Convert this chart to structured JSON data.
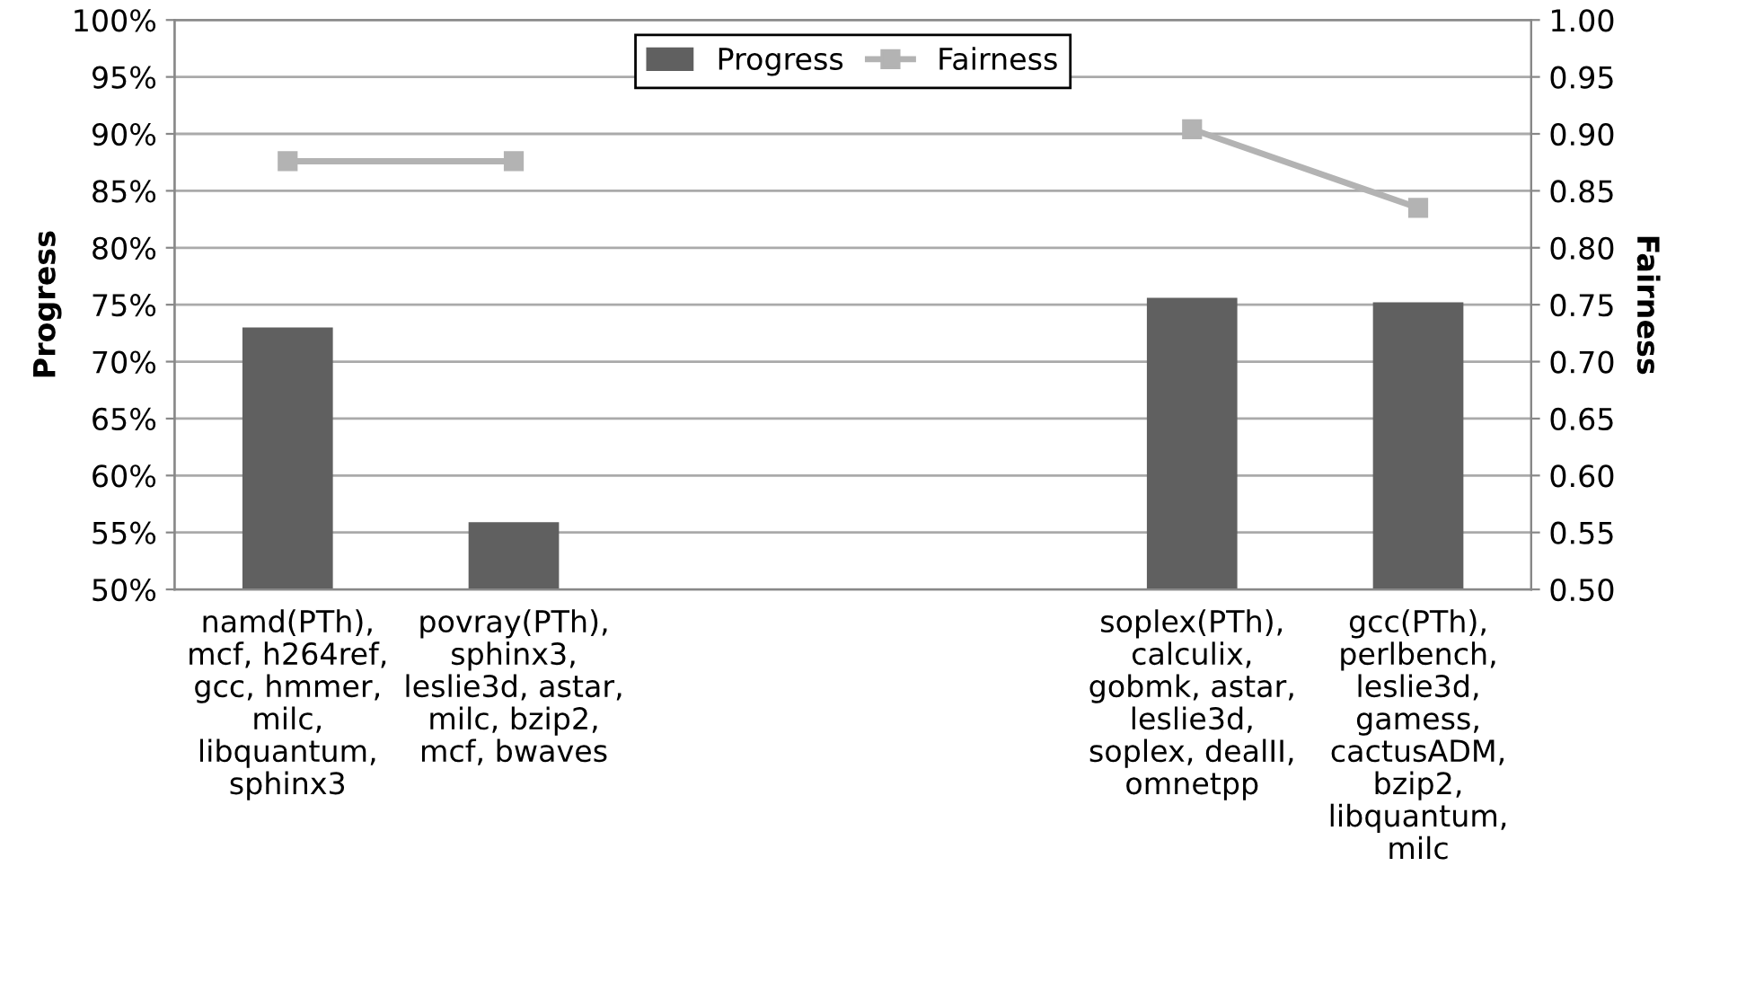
{
  "chart_data": {
    "type": "bar",
    "categories": [
      "namd(PTh),\nmcf, h264ref,\ngcc, hmmer,\nmilc,\nlibquantum,\nsphinx3",
      "povray(PTh),\nsphinx3,\nleslie3d, astar,\nmilc, bzip2,\nmcf, bwaves",
      null,
      null,
      "soplex(PTh),\ncalculix,\ngobmk, astar,\nleslie3d,\nsoplex, dealII,\nomnetpp",
      "gcc(PTh),\nperlbench,\nleslie3d,\ngamess,\ncactusADM,\nbzip2,\nlibquantum,\nmilc"
    ],
    "ylabel": "Progress",
    "y2label": "Fairness",
    "series": [
      {
        "name": "Progress",
        "color": "#606060",
        "values": [
          73.0,
          55.9,
          null,
          null,
          75.6,
          75.2
        ]
      },
      {
        "name": "Fairness",
        "type": "line",
        "axis": "y2",
        "color": "#b3b3b3",
        "marker": "square",
        "values": [
          0.876,
          0.876,
          null,
          null,
          0.904,
          0.835
        ]
      }
    ],
    "ylim": [
      50,
      100
    ],
    "yticks": [
      {
        "value": 50,
        "label": "50%"
      },
      {
        "value": 55,
        "label": "55%"
      },
      {
        "value": 60,
        "label": "60%"
      },
      {
        "value": 65,
        "label": "65%"
      },
      {
        "value": 70,
        "label": "70%"
      },
      {
        "value": 75,
        "label": "75%"
      },
      {
        "value": 80,
        "label": "80%"
      },
      {
        "value": 85,
        "label": "85%"
      },
      {
        "value": 90,
        "label": "90%"
      },
      {
        "value": 95,
        "label": "95%"
      },
      {
        "value": 100,
        "label": "100%"
      }
    ],
    "y2lim": [
      0.5,
      1.0
    ],
    "y2ticks": [
      {
        "value": 0.5,
        "label": "0.50"
      },
      {
        "value": 0.55,
        "label": "0.55"
      },
      {
        "value": 0.6,
        "label": "0.60"
      },
      {
        "value": 0.65,
        "label": "0.65"
      },
      {
        "value": 0.7,
        "label": "0.70"
      },
      {
        "value": 0.75,
        "label": "0.75"
      },
      {
        "value": 0.8,
        "label": "0.80"
      },
      {
        "value": 0.85,
        "label": "0.85"
      },
      {
        "value": 0.9,
        "label": "0.90"
      },
      {
        "value": 0.95,
        "label": "0.95"
      },
      {
        "value": 1.0,
        "label": "1.00"
      }
    ],
    "grid": "y",
    "legend": "top"
  }
}
